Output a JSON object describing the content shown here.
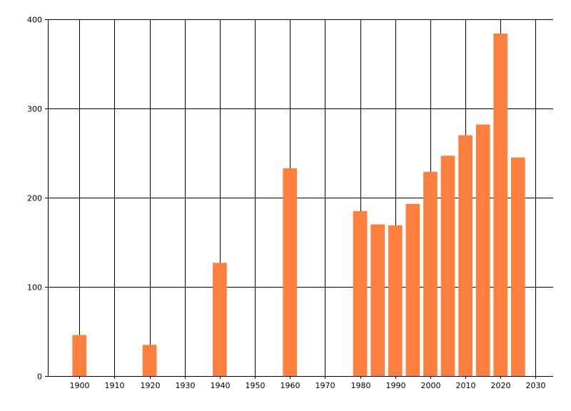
{
  "chart_data": {
    "type": "bar",
    "title": "",
    "xlabel": "",
    "ylabel": "",
    "xlim": [
      1891,
      2035
    ],
    "ylim": [
      0,
      400
    ],
    "x_ticks": [
      1900,
      1910,
      1920,
      1930,
      1940,
      1950,
      1960,
      1970,
      1980,
      1990,
      2000,
      2010,
      2020,
      2030
    ],
    "y_ticks": [
      0,
      100,
      200,
      300,
      400
    ],
    "grid": true,
    "bar_width_years": 4,
    "colors": {
      "bar": "#ff7f3f",
      "grid": "#000000",
      "background": "#ffffff"
    },
    "series": [
      {
        "x": [
          1900,
          1920,
          1940,
          1960,
          1980,
          1985,
          1990,
          1995,
          2000,
          2005,
          2010,
          2015,
          2020,
          2025
        ],
        "values": [
          46,
          35,
          127,
          233,
          185,
          170,
          169,
          193,
          229,
          247,
          270,
          282,
          384,
          245
        ]
      }
    ]
  }
}
